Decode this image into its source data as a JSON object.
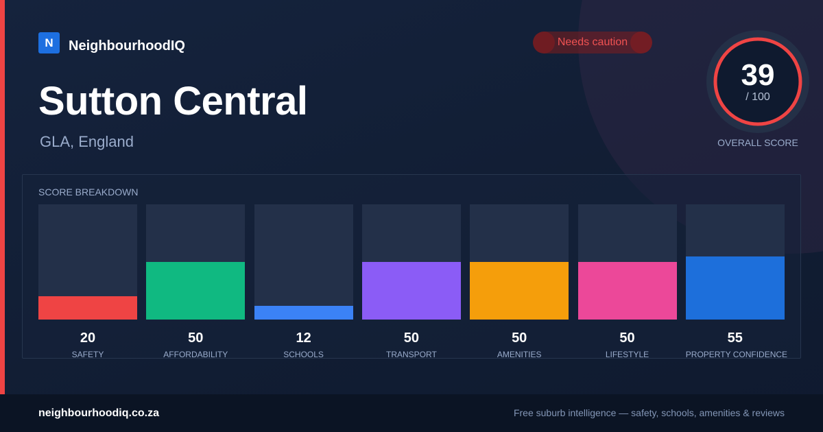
{
  "brand": {
    "logo_letter": "N",
    "name": "NeighbourhoodIQ"
  },
  "status": {
    "label": "Needs caution",
    "color": "#f05252"
  },
  "location": {
    "title": "Sutton Central",
    "region": "GLA, England"
  },
  "overall": {
    "score": "39",
    "max": "/ 100",
    "label": "OVERALL SCORE",
    "ring_color": "#ef4444"
  },
  "breakdown": {
    "heading": "SCORE BREAKDOWN",
    "items": [
      {
        "label": "SAFETY",
        "value": "20",
        "color": "#ef4444"
      },
      {
        "label": "AFFORDABILITY",
        "value": "50",
        "color": "#10b981"
      },
      {
        "label": "SCHOOLS",
        "value": "12",
        "color": "#3b82f6"
      },
      {
        "label": "TRANSPORT",
        "value": "50",
        "color": "#8b5cf6"
      },
      {
        "label": "AMENITIES",
        "value": "50",
        "color": "#f59e0b"
      },
      {
        "label": "LIFESTYLE",
        "value": "50",
        "color": "#ec4899"
      },
      {
        "label": "PROPERTY CONFIDENCE",
        "value": "55",
        "color": "#1d6fdb"
      }
    ]
  },
  "footer": {
    "domain": "neighbourhoodiq.co.za",
    "tagline": "Free suburb intelligence — safety, schools, amenities & reviews"
  }
}
